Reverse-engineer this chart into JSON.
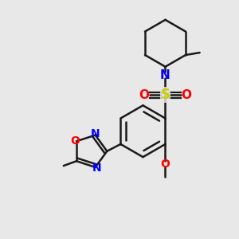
{
  "background_color": "#e8e8e8",
  "bond_color": "#1a1a1a",
  "bond_width": 1.8,
  "figsize": [
    3.0,
    3.0
  ],
  "dpi": 100,
  "xlim": [
    0,
    10
  ],
  "ylim": [
    0,
    10
  ]
}
